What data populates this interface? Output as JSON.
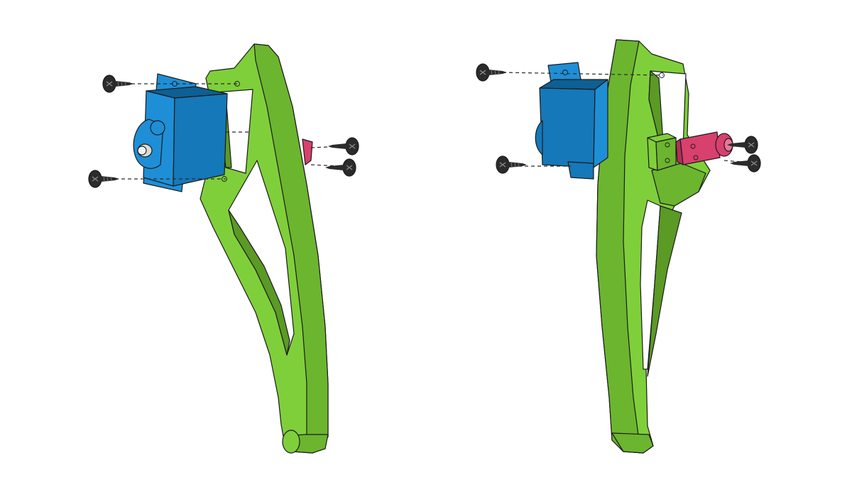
{
  "colors": {
    "background": "#ffffff",
    "leg_light": "#7fcf3a",
    "leg_mid": "#6cb52f",
    "leg_dark": "#5a9a25",
    "servo_light": "#1e8fd6",
    "servo_mid": "#1578b8",
    "servo_dark": "#0e5f93",
    "bracket": "#d8406e",
    "bracket_dark": "#b0305a",
    "screw": "#2b2b2b",
    "horn": "#d9d9d9",
    "outline": "#1b1b1b"
  },
  "views": [
    {
      "view_id": "left-view",
      "components": [
        "leg-part",
        "servo-motor",
        "servo-horn",
        "servo-bracket",
        "mounting-screw"
      ]
    },
    {
      "view_id": "right-view",
      "components": [
        "leg-part",
        "servo-motor",
        "servo-bracket",
        "spacer-block",
        "mounting-screw"
      ]
    }
  ],
  "icons": [
    "screw-icon"
  ]
}
